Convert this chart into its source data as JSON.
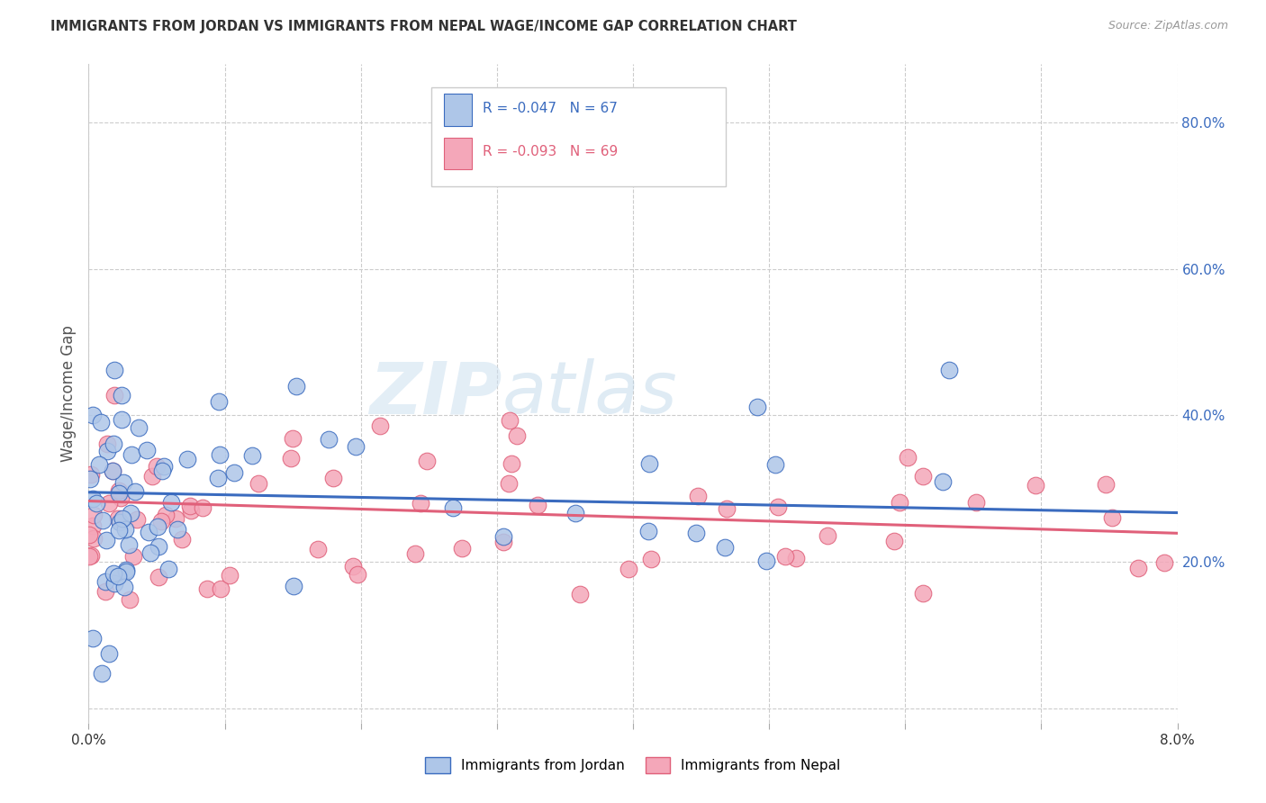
{
  "title": "IMMIGRANTS FROM JORDAN VS IMMIGRANTS FROM NEPAL WAGE/INCOME GAP CORRELATION CHART",
  "source": "Source: ZipAtlas.com",
  "ylabel": "Wage/Income Gap",
  "right_yticks": [
    0.2,
    0.4,
    0.6,
    0.8
  ],
  "right_yticklabels": [
    "20.0%",
    "40.0%",
    "60.0%",
    "80.0%"
  ],
  "xlim": [
    0.0,
    0.08
  ],
  "ylim": [
    -0.02,
    0.88
  ],
  "jordan_R": -0.047,
  "jordan_N": 67,
  "nepal_R": -0.093,
  "nepal_N": 69,
  "jordan_color": "#aec6e8",
  "nepal_color": "#f4a7b9",
  "jordan_line_color": "#3a6bbf",
  "nepal_line_color": "#e0607a",
  "jordan_trend_intercept": 0.295,
  "jordan_trend_slope": -0.35,
  "nepal_trend_intercept": 0.283,
  "nepal_trend_slope": -0.55,
  "watermark_zip": "ZIP",
  "watermark_atlas": "atlas",
  "background_color": "#ffffff",
  "grid_color": "#cccccc",
  "legend_jordan_label": "Immigrants from Jordan",
  "legend_nepal_label": "Immigrants from Nepal"
}
